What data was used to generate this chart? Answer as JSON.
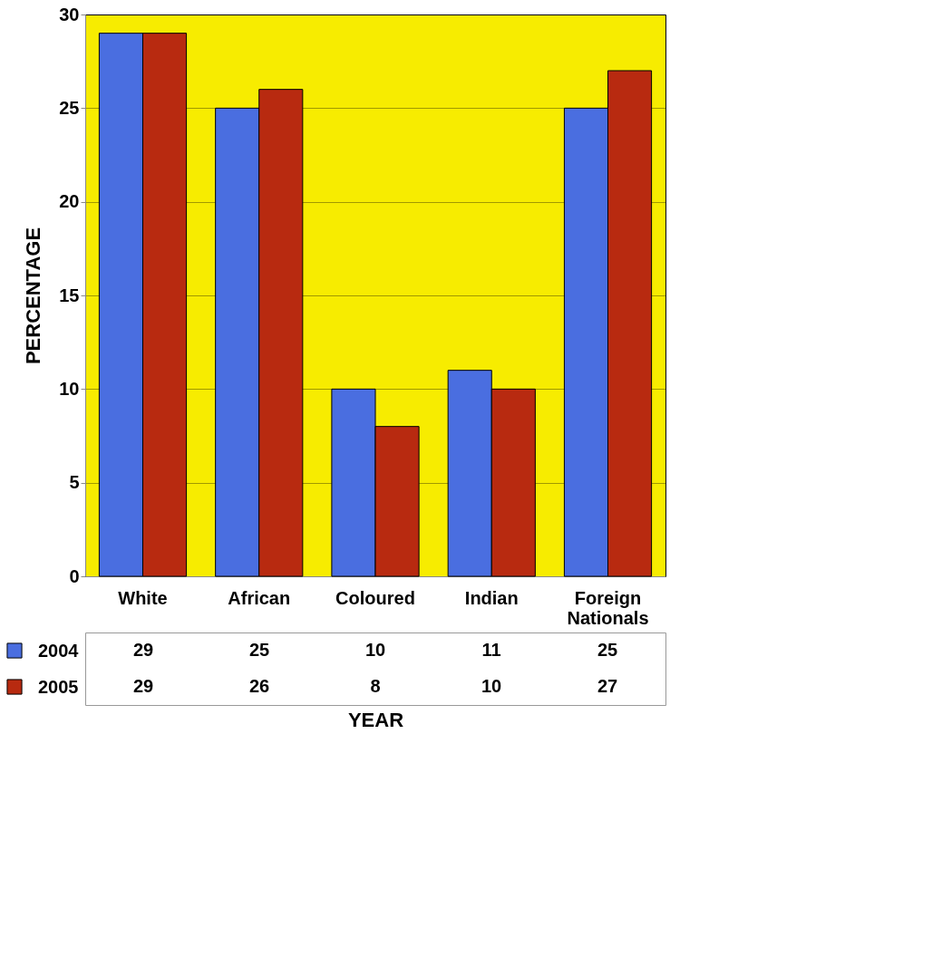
{
  "chart_data": {
    "type": "bar",
    "xlabel": "YEAR",
    "ylabel": "PERCENTAGE",
    "categories": [
      "White",
      "African",
      "Coloured",
      "Indian",
      "Foreign Nationals"
    ],
    "series": [
      {
        "name": "2004",
        "color": "#4a6ee0",
        "values": [
          29,
          25,
          10,
          11,
          25
        ]
      },
      {
        "name": "2005",
        "color": "#b82a10",
        "values": [
          29,
          26,
          8,
          10,
          27
        ]
      }
    ],
    "ylim": [
      0,
      30
    ],
    "yticks": [
      0,
      5,
      10,
      15,
      20,
      25,
      30
    ],
    "grid": "y",
    "legend": "bottom",
    "data_labels": true
  }
}
